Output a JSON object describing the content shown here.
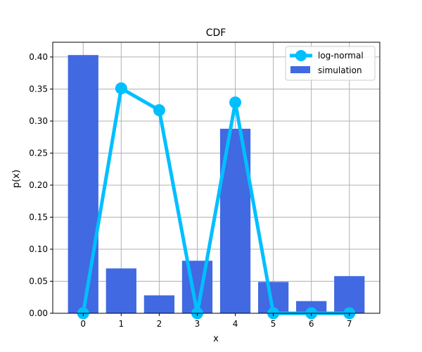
{
  "chart_data": {
    "type": "bar",
    "title": "CDF",
    "xlabel": "x",
    "ylabel": "p(x)",
    "categories": [
      0,
      1,
      2,
      3,
      4,
      5,
      6,
      7
    ],
    "xlim": [
      -0.8,
      7.8
    ],
    "ylim": [
      0,
      0.423
    ],
    "yticks": [
      "0.00",
      "0.05",
      "0.10",
      "0.15",
      "0.20",
      "0.25",
      "0.30",
      "0.35",
      "0.40"
    ],
    "grid": true,
    "legend_position": "top-right",
    "series": [
      {
        "name": "simulation",
        "type": "bar",
        "color": "#4169e1",
        "values": [
          0.403,
          0.07,
          0.028,
          0.082,
          0.288,
          0.049,
          0.019,
          0.058
        ]
      },
      {
        "name": "log-normal",
        "type": "line",
        "color": "#00bfff",
        "markers": true,
        "values": [
          0.0,
          0.351,
          0.317,
          0.0,
          0.329,
          0.0,
          0.0,
          0.0
        ]
      }
    ]
  }
}
